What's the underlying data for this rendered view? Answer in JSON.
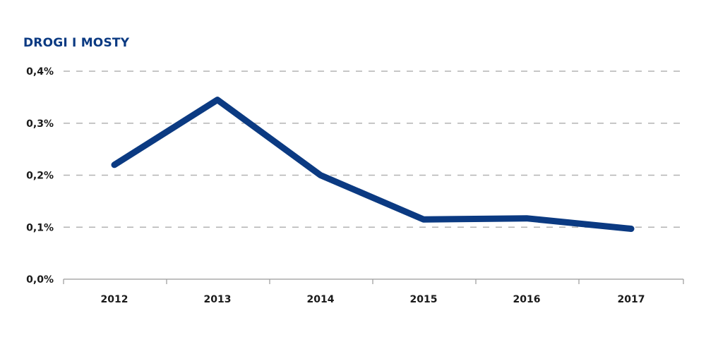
{
  "chart_data": {
    "type": "line",
    "title": "DROGI I MOSTY",
    "xlabel": "",
    "ylabel": "",
    "categories": [
      "2012",
      "2013",
      "2014",
      "2015",
      "2016",
      "2017"
    ],
    "series": [
      {
        "values": [
          0.22,
          0.345,
          0.2,
          0.115,
          0.117,
          0.097
        ]
      }
    ],
    "yticks": [
      "0,0%",
      "0,1%",
      "0,2%",
      "0,3%",
      "0,4%"
    ],
    "ytick_values": [
      0,
      0.1,
      0.2,
      0.3,
      0.4
    ],
    "ylim": [
      0,
      0.4
    ],
    "grid": true,
    "legend": "none",
    "colors": {
      "line": "#0b3a82",
      "title": "#0b3a82",
      "grid": "#b3b3b3",
      "axis": "#9a9a9a",
      "text": "#1a1a1a"
    }
  }
}
